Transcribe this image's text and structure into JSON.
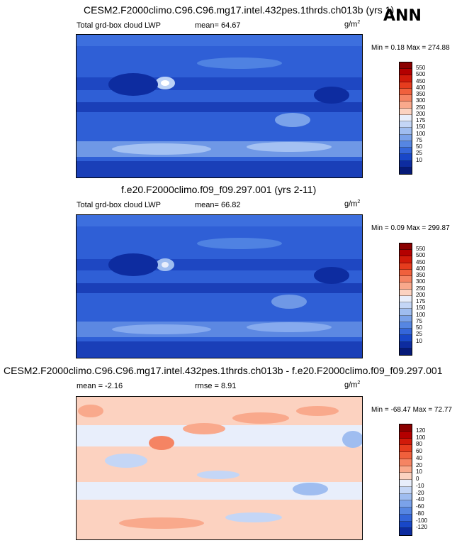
{
  "season": "ANN",
  "panels": [
    {
      "title": "CESM2.F2000climo.C96.C96.mg17.intel.432pes.1thrds.ch013b (yrs 1)",
      "variable": "Total grd-box cloud LWP",
      "mean": "mean=  64.67",
      "rmse": "",
      "units": "g/m",
      "units_exp": "2",
      "minmax": "Min =   0.18 Max = 274.88",
      "colorbar_labels": [
        "550",
        "500",
        "450",
        "400",
        "350",
        "300",
        "250",
        "200",
        "175",
        "150",
        "100",
        "75",
        "50",
        "25",
        "10"
      ],
      "colors": [
        "#8b0000",
        "#b40000",
        "#d11a0a",
        "#e63c1e",
        "#f0603c",
        "#f58463",
        "#f9a98c",
        "#fcd2c0",
        "#e8eefb",
        "#c4d6f6",
        "#9fbdf0",
        "#7aa2ea",
        "#5686e2",
        "#3466da",
        "#1847c8",
        "#0d2ca0",
        "#061a78"
      ]
    },
    {
      "title": "f.e20.F2000climo.f09_f09.297.001 (yrs 2-11)",
      "variable": "Total grd-box cloud LWP",
      "mean": "mean=  66.82",
      "rmse": "",
      "units": "g/m",
      "units_exp": "2",
      "minmax": "Min =   0.09 Max = 299.87",
      "colorbar_labels": [
        "550",
        "500",
        "450",
        "400",
        "350",
        "300",
        "250",
        "200",
        "175",
        "150",
        "100",
        "75",
        "50",
        "25",
        "10"
      ],
      "colors": [
        "#8b0000",
        "#b40000",
        "#d11a0a",
        "#e63c1e",
        "#f0603c",
        "#f58463",
        "#f9a98c",
        "#fcd2c0",
        "#e8eefb",
        "#c4d6f6",
        "#9fbdf0",
        "#7aa2ea",
        "#5686e2",
        "#3466da",
        "#1847c8",
        "#0d2ca0",
        "#061a78"
      ]
    },
    {
      "title": "CESM2.F2000climo.C96.C96.mg17.intel.432pes.1thrds.ch013b - f.e20.F2000climo.f09_f09.297.001",
      "variable": "",
      "mean": "mean =  -2.16",
      "rmse": "rmse =   8.91",
      "units": "g/m",
      "units_exp": "2",
      "minmax": "Min = -68.47 Max =  72.77",
      "colorbar_labels": [
        "120",
        "100",
        "80",
        "60",
        "40",
        "20",
        "10",
        "0",
        "-10",
        "-20",
        "-40",
        "-60",
        "-80",
        "-100",
        "-120"
      ],
      "colors": [
        "#8b0000",
        "#b40000",
        "#d11a0a",
        "#e63c1e",
        "#f0603c",
        "#f58463",
        "#f9a98c",
        "#fcd2c0",
        "#e8eefb",
        "#c4d6f6",
        "#9fbdf0",
        "#7aa2ea",
        "#5686e2",
        "#3466da",
        "#1847c8",
        "#0d2ca0"
      ]
    }
  ]
}
